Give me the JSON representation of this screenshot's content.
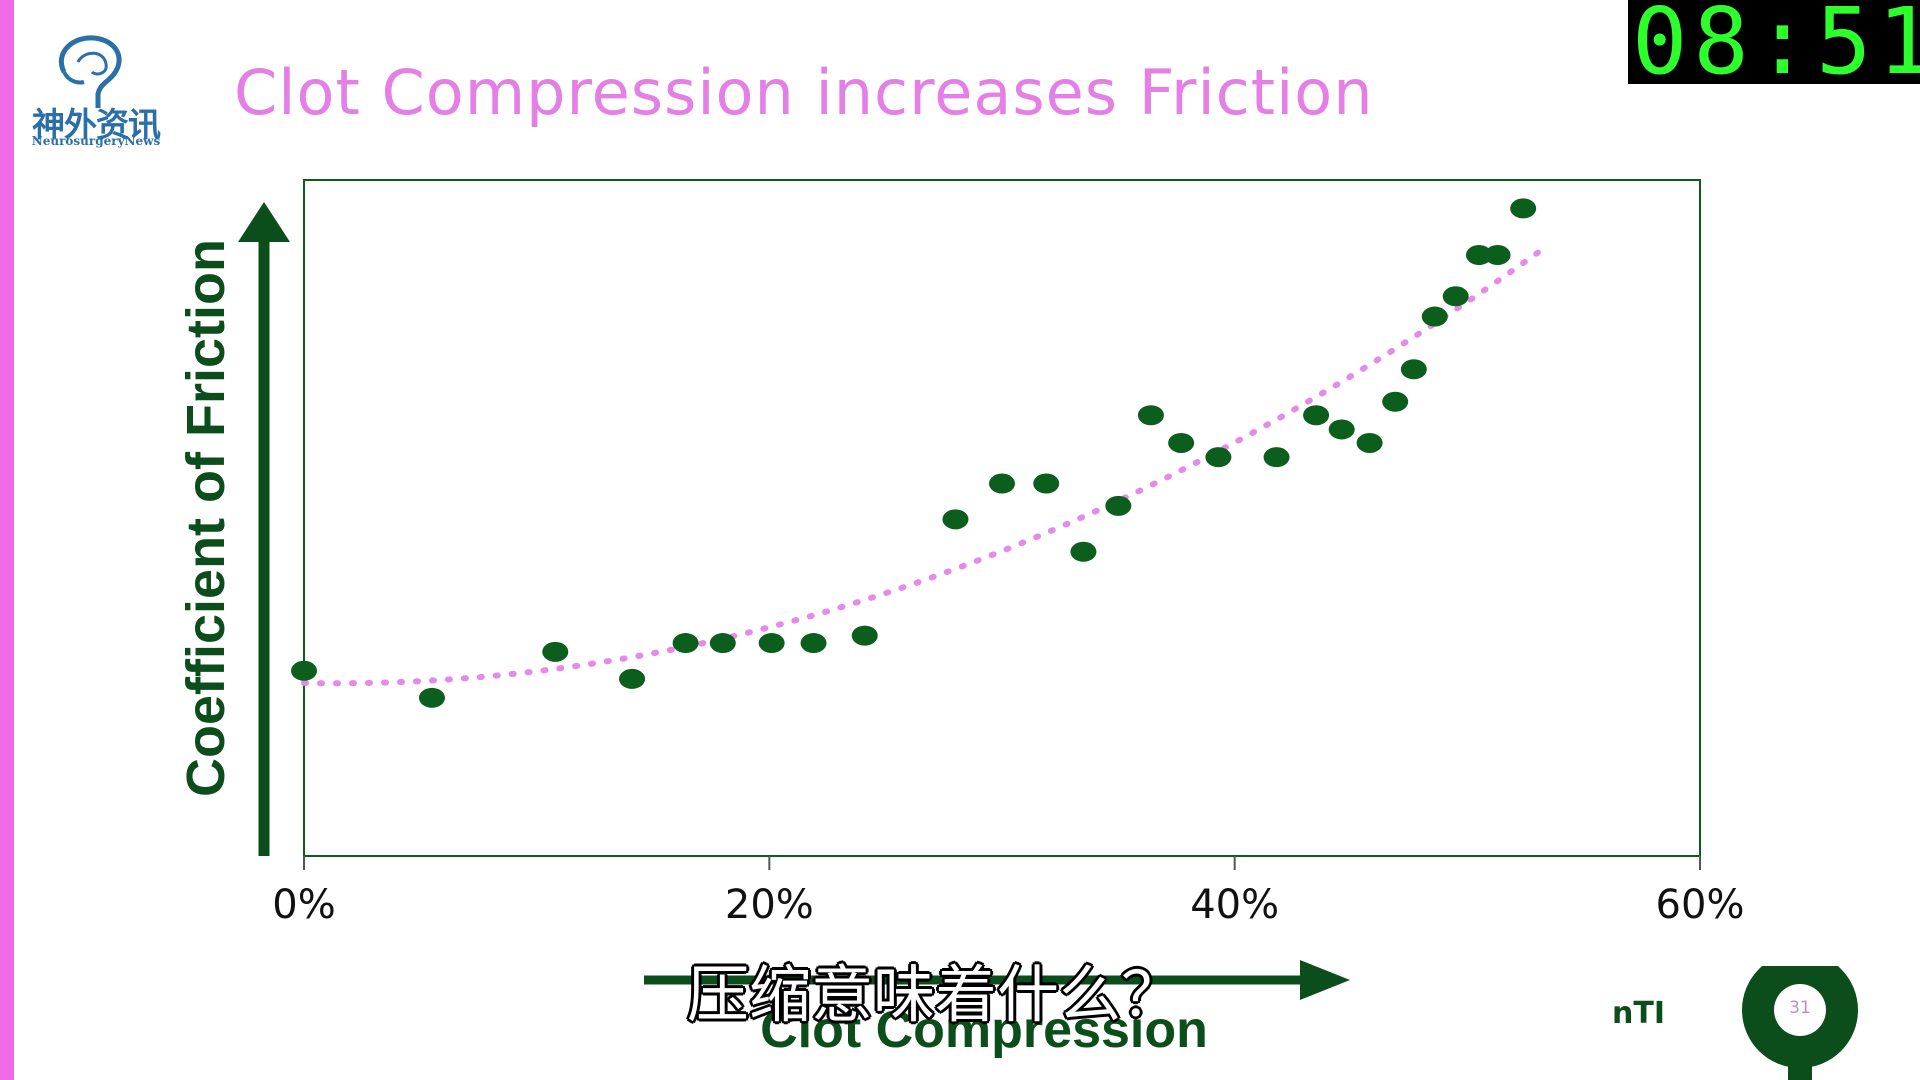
{
  "logo": {
    "chinese_text": "神外资讯",
    "english_text": "NeurosurgeryNews"
  },
  "slide": {
    "title": "Clot Compression increases Friction",
    "page_number": "31",
    "brand_mark": "nTI"
  },
  "clock": {
    "display": "08:51"
  },
  "subtitle": {
    "text": "压缩意味着什么？"
  },
  "colors": {
    "title": "#e47fe6",
    "axis_and_points": "#0b5e1c",
    "trendline": "#e48ae8",
    "left_strip": "#f06ae8",
    "clock_text": "#2cff2c"
  },
  "chart_data": {
    "type": "scatter",
    "title": "Clot Compression increases Friction",
    "xlabel": "Clot Compression",
    "ylabel": "Coefficient of Friction",
    "x_unit": "%",
    "xlim": [
      0,
      60
    ],
    "ylim": [
      0,
      1
    ],
    "xticks": [
      0,
      20,
      40,
      60
    ],
    "xtick_labels": [
      "0%",
      "20%",
      "40%",
      "60%"
    ],
    "grid": false,
    "legend": "none",
    "y_axis_values_labeled": false,
    "trendline": {
      "style": "dotted",
      "shape": "polynomial",
      "x_range": [
        0,
        53.5
      ]
    },
    "points": [
      {
        "x": 0.0,
        "y": 0.274
      },
      {
        "x": 5.5,
        "y": 0.234
      },
      {
        "x": 10.8,
        "y": 0.302
      },
      {
        "x": 14.1,
        "y": 0.262
      },
      {
        "x": 16.4,
        "y": 0.315
      },
      {
        "x": 18.0,
        "y": 0.315
      },
      {
        "x": 20.1,
        "y": 0.315
      },
      {
        "x": 21.9,
        "y": 0.315
      },
      {
        "x": 24.1,
        "y": 0.326
      },
      {
        "x": 28.0,
        "y": 0.498
      },
      {
        "x": 30.0,
        "y": 0.551
      },
      {
        "x": 31.9,
        "y": 0.551
      },
      {
        "x": 33.5,
        "y": 0.45
      },
      {
        "x": 35.0,
        "y": 0.518
      },
      {
        "x": 36.4,
        "y": 0.652
      },
      {
        "x": 37.7,
        "y": 0.611
      },
      {
        "x": 39.3,
        "y": 0.59
      },
      {
        "x": 41.8,
        "y": 0.59
      },
      {
        "x": 43.5,
        "y": 0.652
      },
      {
        "x": 44.6,
        "y": 0.631
      },
      {
        "x": 45.8,
        "y": 0.611
      },
      {
        "x": 46.9,
        "y": 0.672
      },
      {
        "x": 47.7,
        "y": 0.72
      },
      {
        "x": 48.6,
        "y": 0.798
      },
      {
        "x": 49.5,
        "y": 0.828
      },
      {
        "x": 50.5,
        "y": 0.889
      },
      {
        "x": 51.3,
        "y": 0.889
      },
      {
        "x": 52.4,
        "y": 0.958
      }
    ]
  }
}
